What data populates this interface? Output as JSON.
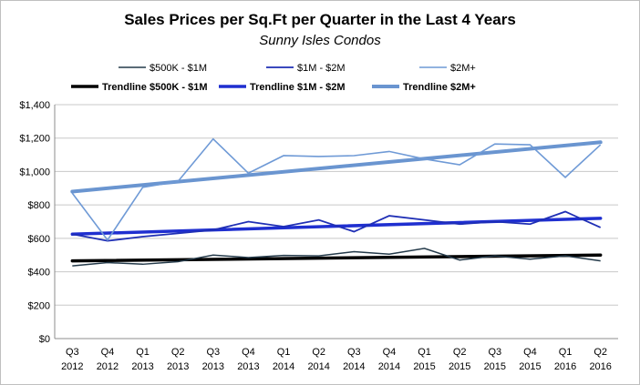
{
  "chart_data": {
    "type": "line",
    "title": "Sales Prices per Sq.Ft per Quarter in the Last 4 Years",
    "subtitle": "Sunny Isles Condos",
    "xlabel": "",
    "ylabel": "",
    "ylim": [
      0,
      1400
    ],
    "y_ticks": [
      0,
      200,
      400,
      600,
      800,
      1000,
      1200,
      1400
    ],
    "y_tick_labels": [
      "$0",
      "$200",
      "$400",
      "$600",
      "$800",
      "$1,000",
      "$1,200",
      "$1,400"
    ],
    "grid": true,
    "categories": [
      [
        "Q3",
        "2012"
      ],
      [
        "Q4",
        "2012"
      ],
      [
        "Q1",
        "2013"
      ],
      [
        "Q2",
        "2013"
      ],
      [
        "Q3",
        "2013"
      ],
      [
        "Q4",
        "2013"
      ],
      [
        "Q1",
        "2014"
      ],
      [
        "Q2",
        "2014"
      ],
      [
        "Q3",
        "2014"
      ],
      [
        "Q4",
        "2014"
      ],
      [
        "Q1",
        "2015"
      ],
      [
        "Q2",
        "2015"
      ],
      [
        "Q3",
        "2015"
      ],
      [
        "Q4",
        "2015"
      ],
      [
        "Q1",
        "2016"
      ],
      [
        "Q2",
        "2016"
      ]
    ],
    "series": [
      {
        "name": "$500K - $1M",
        "color": "#243a4a",
        "values": [
          435,
          455,
          445,
          460,
          500,
          485,
          498,
          495,
          520,
          505,
          540,
          470,
          495,
          475,
          495,
          465
        ]
      },
      {
        "name": "$1M - $2M",
        "color": "#1f2fb5",
        "values": [
          625,
          585,
          610,
          630,
          650,
          700,
          670,
          710,
          640,
          735,
          710,
          685,
          700,
          685,
          760,
          665
        ]
      },
      {
        "name": "$2M+",
        "color": "#6f9ad6",
        "values": [
          870,
          590,
          905,
          940,
          1195,
          990,
          1095,
          1090,
          1095,
          1120,
          1075,
          1040,
          1165,
          1160,
          965,
          1160
        ]
      }
    ],
    "trendlines": [
      {
        "name": "Trendline $500K - $1M",
        "color": "#000000",
        "start": 465,
        "end": 500
      },
      {
        "name": "Trendline $1M - $2M",
        "color": "#1f2fd0",
        "start": 625,
        "end": 720
      },
      {
        "name": "Trendline $2M+",
        "color": "#6a95d0",
        "start": 880,
        "end": 1175
      }
    ],
    "legend_position": "top"
  }
}
